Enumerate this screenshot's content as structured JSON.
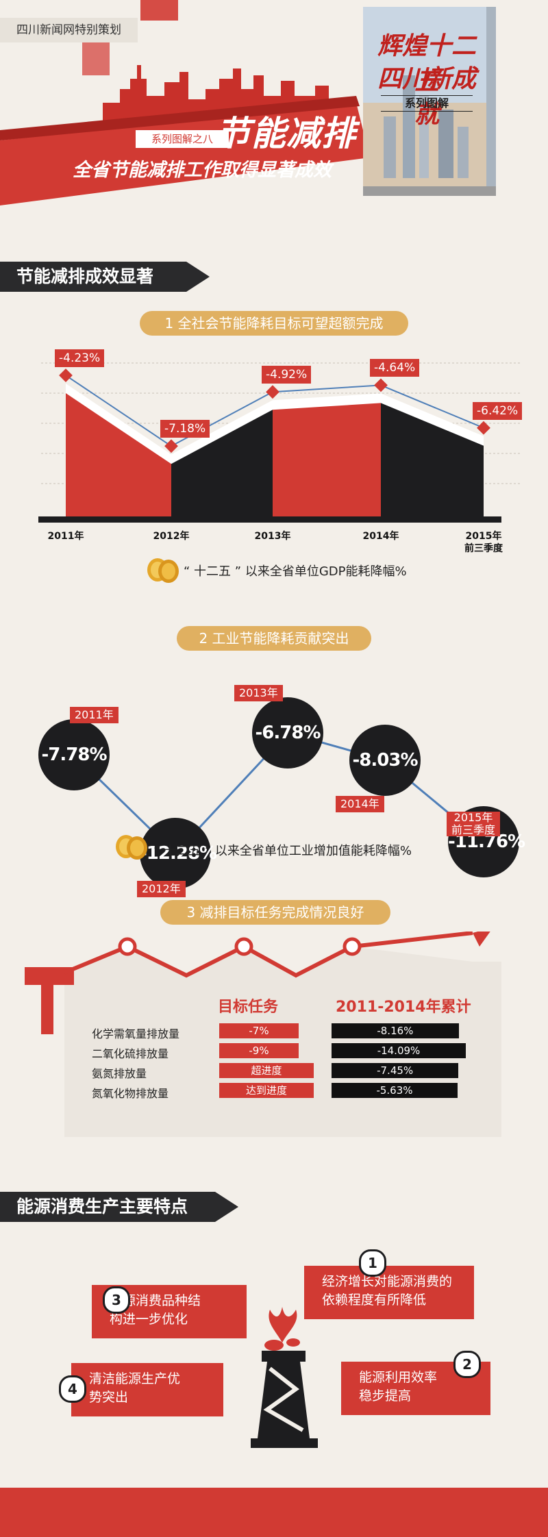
{
  "header": {
    "source_tag": "四川新闻网特别策划",
    "series_tag": "系列图解之八",
    "title_main": "节能减排",
    "subtitle": "全省节能减排工作取得显著成效",
    "book_title_line1": "辉煌十二五",
    "book_title_line2": "四川新成就",
    "book_series": "系列图解"
  },
  "section1": {
    "title": "节能减排成效显著"
  },
  "section2": {
    "title": "能源消费生产主要特点"
  },
  "colors": {
    "red": "#d13a33",
    "black": "#1d1d1f",
    "gold": "#e0b061",
    "line_blue": "#4f7fb8"
  },
  "chart_data": [
    {
      "type": "area",
      "title": "1 全社会节能降耗目标可望超额完成",
      "categories": [
        "2011年",
        "2012年",
        "2013年",
        "2014年",
        "2015年\n前三季度"
      ],
      "categories_line1": [
        "2011年",
        "2012年",
        "2013年",
        "2014年",
        "2015年"
      ],
      "categories_line2": [
        "",
        "",
        "",
        "",
        "前三季度"
      ],
      "values": [
        -4.23,
        -7.18,
        -4.92,
        -4.64,
        -6.42
      ],
      "data_labels": [
        "-4.23%",
        "-7.18%",
        "-4.92%",
        "-4.64%",
        "-6.42%"
      ],
      "caption": "“ 十二五 ” 以来全省单位GDP能耗降幅%"
    },
    {
      "type": "line",
      "title": "2 工业节能降耗贡献突出",
      "categories": [
        "2011年",
        "2012年",
        "2013年",
        "2014年",
        "2015年\n前三季度"
      ],
      "categories_line1": [
        "2011年",
        "2012年",
        "2013年",
        "2014年",
        "2015年"
      ],
      "categories_line2": [
        "",
        "",
        "",
        "",
        "前三季度"
      ],
      "values": [
        -7.78,
        -12.28,
        -6.78,
        -8.03,
        -11.76
      ],
      "data_labels": [
        "-7.78%",
        "-12.28%",
        "-6.78%",
        "-8.03%",
        "-11.76%"
      ],
      "caption": "“ 十二五 ” 以来全省单位工业增加值能耗降幅%"
    },
    {
      "type": "table",
      "title": "3 减排目标任务完成情况良好",
      "columns": [
        "目标任务",
        "2011-2014年累计"
      ],
      "rows": [
        {
          "name": "化学需氧量排放量",
          "target": "-7%",
          "actual": "-8.16%",
          "actual_value": -8.16
        },
        {
          "name": "二氧化硫排放量",
          "target": "-9%",
          "actual": "-14.09%",
          "actual_value": -14.09
        },
        {
          "name": "氨氮排放量",
          "target": "超进度",
          "actual": "-7.45%",
          "actual_value": -7.45
        },
        {
          "name": "氮氧化物排放量",
          "target": "达到进度",
          "actual": "-5.63%",
          "actual_value": -5.63
        }
      ]
    }
  ],
  "features": [
    {
      "num": "1",
      "text_line1": "经济增长对能源消费的",
      "text_line2": "依赖程度有所降低"
    },
    {
      "num": "2",
      "text_line1": "能源利用效率",
      "text_line2": "稳步提高"
    },
    {
      "num": "3",
      "text_line1": "能源消费品种结",
      "text_line2": "构进一步优化"
    },
    {
      "num": "4",
      "text_line1": "清洁能源生产优",
      "text_line2": "势突出"
    }
  ]
}
